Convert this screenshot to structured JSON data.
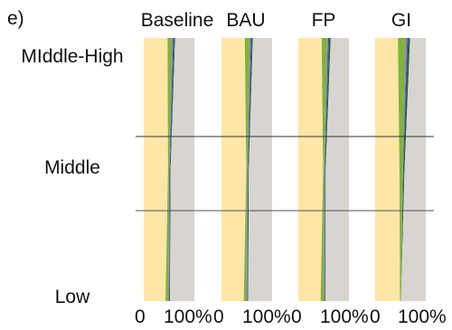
{
  "panel_label": "e)",
  "chart_data": {
    "type": "area",
    "orientation": "horizontal-stacked-share",
    "panels": [
      {
        "title": "Baseline"
      },
      {
        "title": "BAU"
      },
      {
        "title": "FP"
      },
      {
        "title": "GI"
      }
    ],
    "categories": [
      "MIddle-High",
      "Middle",
      "Low"
    ],
    "x_ticks": [
      "0",
      "100%"
    ],
    "xlim": [
      0,
      100
    ],
    "grid_lines_between_categories": true,
    "series_colors": [
      "#fde6a6",
      "#7fb33a",
      "#9d7eb6",
      "#2f5f73",
      "#1f5e3c",
      "#d8d4cf"
    ],
    "data": [
      {
        "panel": "Baseline",
        "stacks": {
          "MIddle-High": [
            47,
            8,
            3,
            2,
            2,
            38
          ],
          "Middle": [
            48,
            2,
            1,
            1,
            1,
            47
          ],
          "Low": [
            43,
            5,
            2,
            1,
            1,
            48
          ]
        }
      },
      {
        "panel": "BAU",
        "stacks": {
          "MIddle-High": [
            46,
            9,
            3,
            2,
            2,
            38
          ],
          "Middle": [
            49,
            2,
            1,
            1,
            1,
            46
          ],
          "Low": [
            44,
            5,
            2,
            1,
            1,
            47
          ]
        }
      },
      {
        "panel": "FP",
        "stacks": {
          "MIddle-High": [
            46,
            10,
            3,
            2,
            3,
            36
          ],
          "Middle": [
            49,
            2,
            1,
            1,
            1,
            46
          ],
          "Low": [
            44,
            6,
            2,
            1,
            1,
            46
          ]
        }
      },
      {
        "panel": "GI",
        "stacks": {
          "MIddle-High": [
            45,
            14,
            4,
            2,
            4,
            31
          ],
          "Middle": [
            48,
            6,
            1,
            1,
            2,
            42
          ],
          "Low": [
            49,
            2,
            0,
            0,
            0,
            49
          ]
        }
      }
    ]
  }
}
